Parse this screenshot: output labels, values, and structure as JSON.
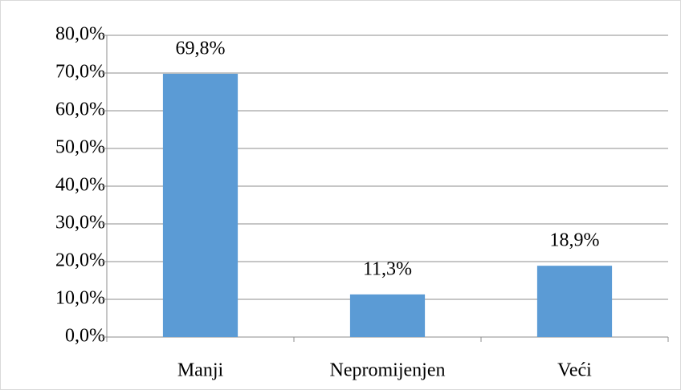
{
  "chart_data": {
    "type": "bar",
    "categories": [
      "Manji",
      "Nepromijenjen",
      "Veći"
    ],
    "values": [
      69.8,
      11.3,
      18.9
    ],
    "value_labels": [
      "69,8%",
      "11,3%",
      "18,9%"
    ],
    "color": "#5b9bd5",
    "ylim": [
      0,
      80
    ],
    "yticks": [
      {
        "value": 0,
        "label": "0,0%"
      },
      {
        "value": 10,
        "label": "10,0%"
      },
      {
        "value": 20,
        "label": "20,0%"
      },
      {
        "value": 30,
        "label": "30,0%"
      },
      {
        "value": 40,
        "label": "40,0%"
      },
      {
        "value": 50,
        "label": "50,0%"
      },
      {
        "value": 60,
        "label": "60,0%"
      },
      {
        "value": 70,
        "label": "70,0%"
      },
      {
        "value": 80,
        "label": "80,0%"
      }
    ],
    "grid": true
  }
}
